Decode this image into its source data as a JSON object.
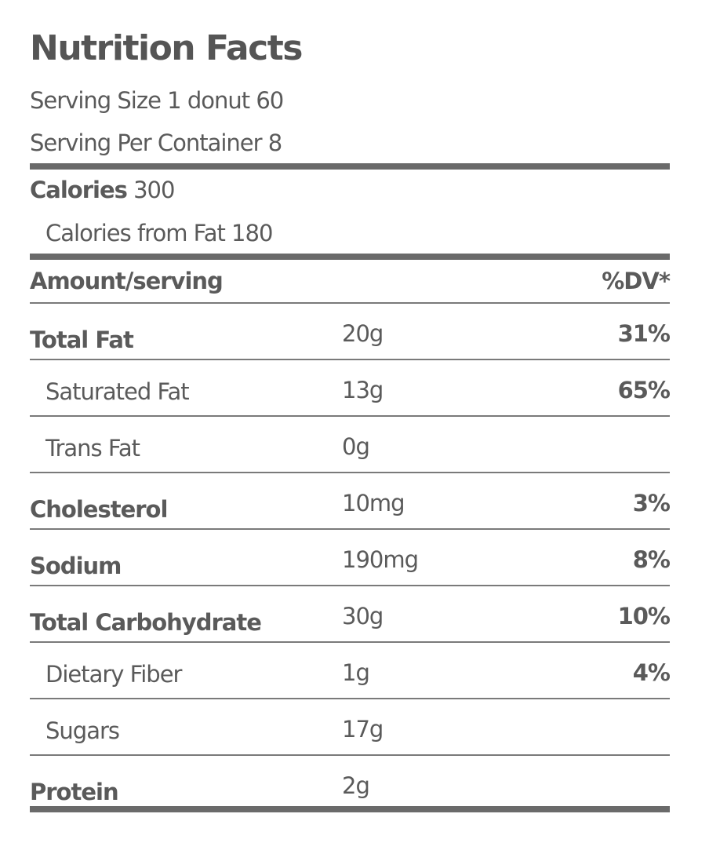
{
  "label": {
    "title": "Nutrition Facts",
    "serving_size": "Serving Size 1 donut 60",
    "servings_per_container": "Serving Per Container 8",
    "calories_label": "Calories",
    "calories_value": "300",
    "calories_from_fat": "Calories from Fat 180",
    "amount_header": "Amount/serving",
    "dv_header": "%DV*"
  },
  "rows": [
    {
      "name": "Total Fat",
      "amount": "20g",
      "dv": "31%"
    },
    {
      "name": "Saturated Fat",
      "amount": "13g",
      "dv": "65%"
    },
    {
      "name": "Trans Fat",
      "amount": "0g",
      "dv": ""
    },
    {
      "name": "Cholesterol",
      "amount": "10mg",
      "dv": "3%"
    },
    {
      "name": "Sodium",
      "amount": "190mg",
      "dv": "8%"
    },
    {
      "name": "Total Carbohydrate",
      "amount": "30g",
      "dv": "10%"
    },
    {
      "name": "Dietary Fiber",
      "amount": "1g",
      "dv": "4%"
    },
    {
      "name": "Sugars",
      "amount": "17g",
      "dv": ""
    },
    {
      "name": "Protein",
      "amount": "2g",
      "dv": ""
    }
  ],
  "colors": {
    "text": "#5a5a5a",
    "rule": "#6a6a6a",
    "background": "#ffffff"
  }
}
